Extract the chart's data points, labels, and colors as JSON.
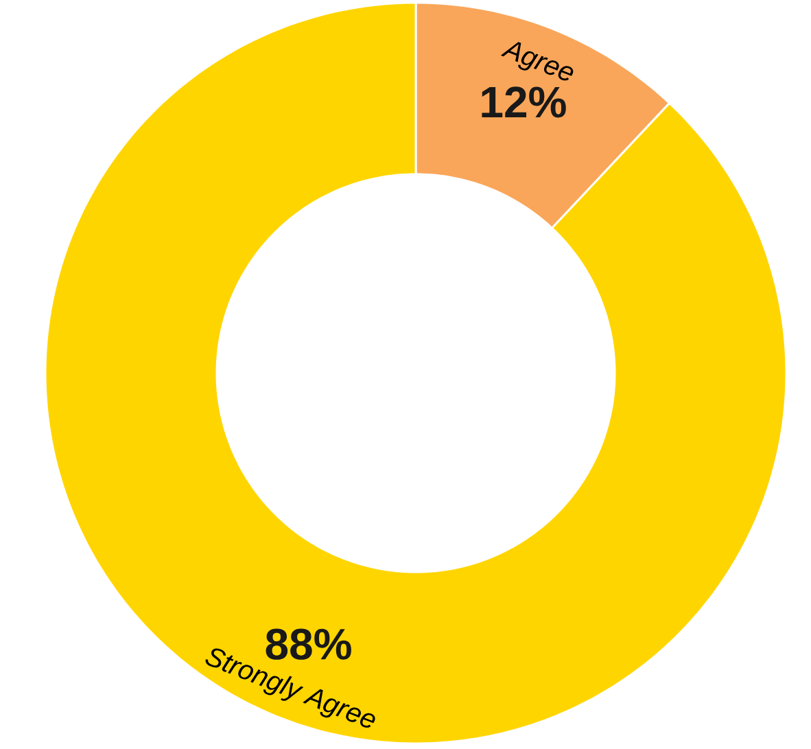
{
  "chart_data": {
    "type": "donut",
    "categories": [
      "Agree",
      "Strongly Agree"
    ],
    "values": [
      12,
      88
    ],
    "value_labels": [
      "12%",
      "88%"
    ],
    "colors": [
      "#f9a65a",
      "#ffd500"
    ]
  }
}
